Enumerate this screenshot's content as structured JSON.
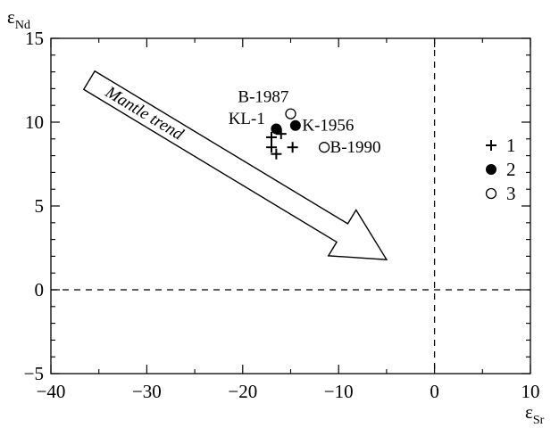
{
  "chart_data": {
    "type": "scatter",
    "xlabel_main": "ε",
    "xlabel_sub": "Sr",
    "ylabel_main": "ε",
    "ylabel_sub": "Nd",
    "xlim": [
      -40,
      10
    ],
    "ylim": [
      -5,
      15
    ],
    "x_ticks": [
      -40,
      -30,
      -20,
      -10,
      0,
      10
    ],
    "x_tick_labels": [
      "−40",
      "−30",
      "−20",
      "−10",
      "0",
      "10"
    ],
    "y_ticks": [
      -5,
      0,
      5,
      10,
      15
    ],
    "y_tick_labels": [
      "−5",
      "0",
      "5",
      "10",
      "15"
    ],
    "grid": false,
    "reference_lines": [
      {
        "axis": "x",
        "value": 0,
        "style": "dashed"
      },
      {
        "axis": "y",
        "value": 0,
        "style": "dashed"
      }
    ],
    "series": [
      {
        "name": "1",
        "marker": "plus",
        "points": [
          [
            -17,
            9.1
          ],
          [
            -16,
            9.3
          ],
          [
            -17,
            8.5
          ],
          [
            -16.5,
            8.1
          ],
          [
            -14.8,
            8.5
          ]
        ]
      },
      {
        "name": "2",
        "marker": "filled-circle",
        "points": [
          [
            -16.5,
            9.6
          ],
          [
            -14.5,
            9.8
          ]
        ]
      },
      {
        "name": "3",
        "marker": "open-circle",
        "points": [
          [
            -15,
            10.5
          ],
          [
            -11.5,
            8.5
          ]
        ]
      }
    ],
    "point_labels": [
      {
        "text": "B-1987",
        "x": -20.5,
        "y": 11.2
      },
      {
        "text": "KL-1",
        "x": -21.5,
        "y": 9.9
      },
      {
        "text": "K-1956",
        "x": -13.8,
        "y": 9.5
      },
      {
        "text": "B-1990",
        "x": -10.9,
        "y": 8.2
      }
    ],
    "arrow": {
      "label": "Mantle trend",
      "from": [
        -36,
        12.5
      ],
      "to": [
        -5,
        1.8
      ]
    },
    "legend": {
      "placement": "right",
      "items": [
        {
          "symbol": "plus",
          "label": "1"
        },
        {
          "symbol": "filled-circle",
          "label": "2"
        },
        {
          "symbol": "open-circle",
          "label": "3"
        }
      ]
    }
  }
}
